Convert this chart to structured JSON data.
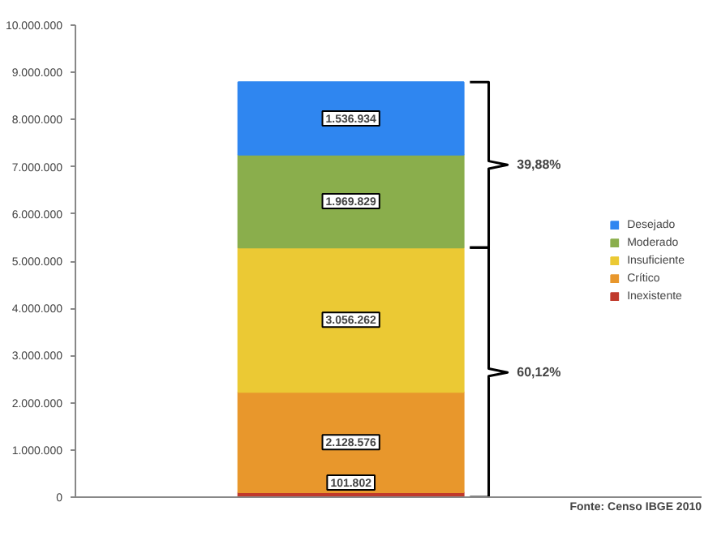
{
  "chart_data": {
    "type": "bar",
    "stacked": true,
    "categories": [
      null
    ],
    "series": [
      {
        "name": "Inexistente",
        "color": "#c0392b",
        "values": [
          101802
        ],
        "value_labels": [
          "101.802"
        ]
      },
      {
        "name": "Crítico",
        "color": "#e8972c",
        "values": [
          2128576
        ],
        "value_labels": [
          "2.128.576"
        ]
      },
      {
        "name": "Insuficiente",
        "color": "#ebc934",
        "values": [
          3056262
        ],
        "value_labels": [
          "3.056.262"
        ]
      },
      {
        "name": "Moderado",
        "color": "#8aae4c",
        "values": [
          1969829
        ],
        "value_labels": [
          "1.969.829"
        ]
      },
      {
        "name": "Desejado",
        "color": "#2f86f0",
        "values": [
          1536934
        ],
        "value_labels": [
          "1.536.934"
        ]
      }
    ],
    "ylim": [
      0,
      10000000
    ],
    "yticks": [
      {
        "value": 0,
        "label": "0"
      },
      {
        "value": 1000000,
        "label": "1.000.000"
      },
      {
        "value": 2000000,
        "label": "2.000.000"
      },
      {
        "value": 3000000,
        "label": "3.000.000"
      },
      {
        "value": 4000000,
        "label": "4.000.000"
      },
      {
        "value": 5000000,
        "label": "5.000.000"
      },
      {
        "value": 6000000,
        "label": "6.000.000"
      },
      {
        "value": 7000000,
        "label": "7.000.000"
      },
      {
        "value": 8000000,
        "label": "8.000.000"
      },
      {
        "value": 9000000,
        "label": "9.000.000"
      },
      {
        "value": 10000000,
        "label": "10.000.000"
      }
    ],
    "legend": "right",
    "grid": false,
    "annotations": [
      "39,88%",
      "60,12%",
      "Fonte: Censo IBGE 2010"
    ]
  }
}
